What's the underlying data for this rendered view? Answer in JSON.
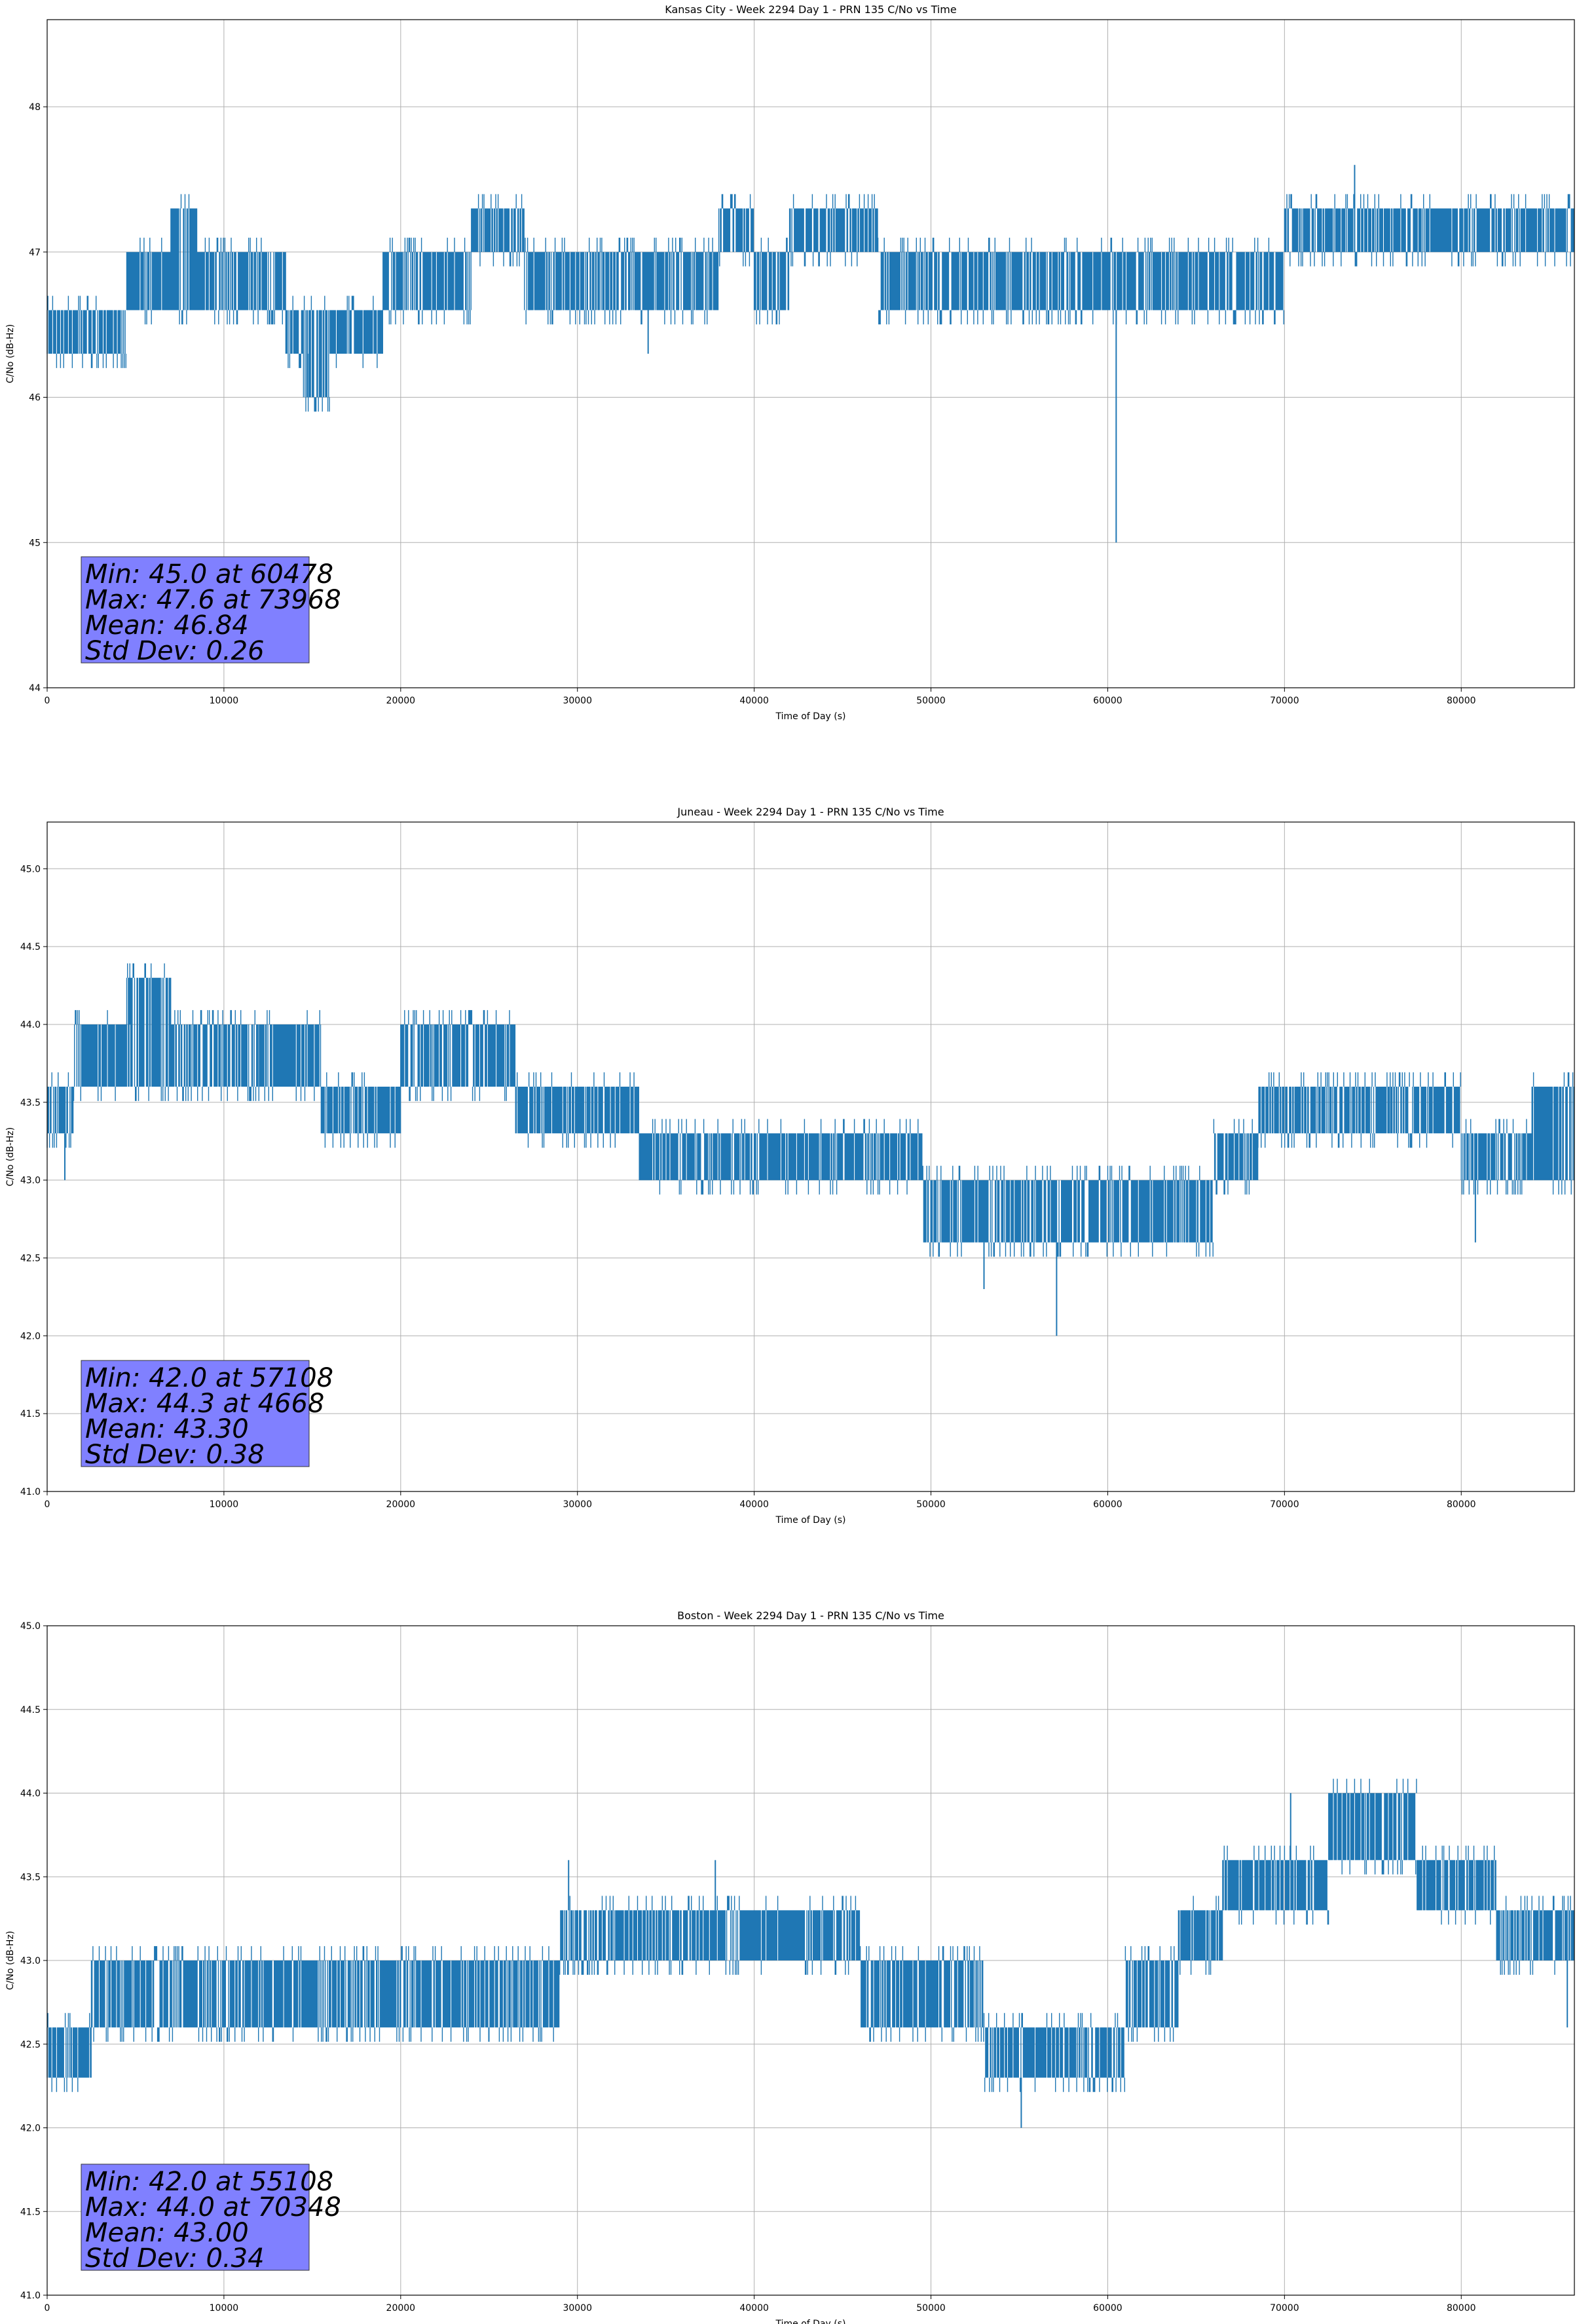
{
  "chart_data": [
    {
      "type": "line",
      "title": "Kansas City - Week 2294 Day 1 - PRN 135 C/No vs Time",
      "xlabel": "Time of Day (s)",
      "ylabel": "C/No (dB-Hz)",
      "xlim": [
        0,
        86400
      ],
      "ylim": [
        44.0,
        48.6
      ],
      "xticks": [
        0,
        10000,
        20000,
        30000,
        40000,
        50000,
        60000,
        70000,
        80000
      ],
      "yticks": [
        44,
        45,
        46,
        47,
        48
      ],
      "ytick_decimals": 0,
      "grid": true,
      "series_color": "#1f77b4",
      "stats": [
        "Min: 45.0 at 60478",
        "Max: 47.6 at 73968",
        "Mean: 46.84",
        "Std Dev: 0.26"
      ],
      "stats_box_color": "#8080ff",
      "segments": [
        [
          0,
          2500,
          46.3,
          46.6
        ],
        [
          2500,
          4500,
          46.3,
          46.6
        ],
        [
          4500,
          5500,
          46.6,
          47.0
        ],
        [
          5500,
          7000,
          46.6,
          47.0
        ],
        [
          7000,
          8500,
          46.6,
          47.3
        ],
        [
          8500,
          11000,
          46.6,
          47.0
        ],
        [
          11000,
          13500,
          46.6,
          47.0
        ],
        [
          13500,
          14500,
          46.3,
          46.6
        ],
        [
          14500,
          16000,
          46.0,
          46.6
        ],
        [
          16000,
          19000,
          46.3,
          46.6
        ],
        [
          19000,
          24000,
          46.6,
          47.0
        ],
        [
          24000,
          27000,
          47.0,
          47.3
        ],
        [
          27000,
          30000,
          46.6,
          47.0
        ],
        [
          30000,
          34000,
          46.6,
          47.0
        ],
        [
          34000,
          38000,
          46.6,
          47.0
        ],
        [
          38000,
          40000,
          47.0,
          47.3
        ],
        [
          40000,
          42000,
          46.6,
          47.0
        ],
        [
          42000,
          47000,
          47.0,
          47.3
        ],
        [
          47000,
          49000,
          46.6,
          47.0
        ],
        [
          49000,
          54000,
          46.6,
          47.0
        ],
        [
          54000,
          60000,
          46.6,
          47.0
        ],
        [
          60000,
          61000,
          46.6,
          47.0
        ],
        [
          61000,
          66000,
          46.6,
          47.0
        ],
        [
          66000,
          70000,
          46.6,
          47.0
        ],
        [
          70000,
          74000,
          47.0,
          47.3
        ],
        [
          74000,
          78000,
          47.0,
          47.3
        ],
        [
          78000,
          82000,
          47.0,
          47.3
        ],
        [
          82000,
          86400,
          47.0,
          47.3
        ]
      ],
      "spikes": [
        [
          60478,
          45.0,
          46.6
        ],
        [
          73968,
          47.0,
          47.6
        ],
        [
          14800,
          46.0,
          46.3
        ],
        [
          34000,
          46.3,
          46.6
        ]
      ]
    },
    {
      "type": "line",
      "title": "Juneau - Week 2294 Day 1 - PRN 135 C/No vs Time",
      "xlabel": "Time of Day (s)",
      "ylabel": "C/No (dB-Hz)",
      "xlim": [
        0,
        86400
      ],
      "ylim": [
        41.0,
        45.3
      ],
      "xticks": [
        0,
        10000,
        20000,
        30000,
        40000,
        50000,
        60000,
        70000,
        80000
      ],
      "yticks": [
        41.0,
        41.5,
        42.0,
        42.5,
        43.0,
        43.5,
        44.0,
        44.5,
        45.0
      ],
      "ytick_decimals": 1,
      "grid": true,
      "series_color": "#1f77b4",
      "stats": [
        "Min: 42.0 at 57108",
        "Max: 44.3 at 4668",
        "Mean: 43.30",
        "Std Dev: 0.38"
      ],
      "stats_box_color": "#8080ff",
      "segments": [
        [
          0,
          1500,
          43.3,
          43.6
        ],
        [
          1500,
          4500,
          43.6,
          44.0
        ],
        [
          4500,
          7000,
          43.6,
          44.3
        ],
        [
          7000,
          12000,
          43.6,
          44.0
        ],
        [
          12000,
          15500,
          43.6,
          44.0
        ],
        [
          15500,
          20000,
          43.3,
          43.6
        ],
        [
          20000,
          23000,
          43.6,
          44.0
        ],
        [
          23000,
          26500,
          43.6,
          44.0
        ],
        [
          26500,
          30000,
          43.3,
          43.6
        ],
        [
          30000,
          33500,
          43.3,
          43.6
        ],
        [
          33500,
          38000,
          43.0,
          43.3
        ],
        [
          38000,
          42000,
          43.0,
          43.3
        ],
        [
          42000,
          45000,
          43.0,
          43.3
        ],
        [
          45000,
          47000,
          43.0,
          43.3
        ],
        [
          47000,
          49500,
          43.0,
          43.3
        ],
        [
          49500,
          54000,
          42.6,
          43.0
        ],
        [
          54000,
          58000,
          42.6,
          43.0
        ],
        [
          58000,
          62000,
          42.6,
          43.0
        ],
        [
          62000,
          66000,
          42.6,
          43.0
        ],
        [
          66000,
          68500,
          43.0,
          43.3
        ],
        [
          68500,
          71000,
          43.3,
          43.6
        ],
        [
          71000,
          76000,
          43.3,
          43.6
        ],
        [
          76000,
          80000,
          43.3,
          43.6
        ],
        [
          80000,
          84000,
          43.0,
          43.3
        ],
        [
          84000,
          86400,
          43.0,
          43.6
        ]
      ],
      "spikes": [
        [
          57108,
          42.0,
          42.6
        ],
        [
          4668,
          44.0,
          44.3
        ],
        [
          53000,
          42.3,
          42.6
        ],
        [
          80800,
          42.6,
          43.0
        ],
        [
          1000,
          43.0,
          43.3
        ]
      ]
    },
    {
      "type": "line",
      "title": "Boston - Week 2294 Day 1 - PRN 135 C/No vs Time",
      "xlabel": "Time of Day (s)",
      "ylabel": "C/No (dB-Hz)",
      "xlim": [
        0,
        86400
      ],
      "ylim": [
        41.0,
        45.0
      ],
      "xticks": [
        0,
        10000,
        20000,
        30000,
        40000,
        50000,
        60000,
        70000,
        80000
      ],
      "yticks": [
        41.0,
        41.5,
        42.0,
        42.5,
        43.0,
        43.5,
        44.0,
        44.5,
        45.0
      ],
      "ytick_decimals": 1,
      "grid": true,
      "series_color": "#1f77b4",
      "stats": [
        "Min: 42.0 at 55108",
        "Max: 44.0 at 70348",
        "Mean: 43.00",
        "Std Dev: 0.34"
      ],
      "stats_box_color": "#8080ff",
      "segments": [
        [
          0,
          2500,
          42.3,
          42.6
        ],
        [
          2500,
          5000,
          42.6,
          43.0
        ],
        [
          5000,
          8000,
          42.6,
          43.0
        ],
        [
          8000,
          12000,
          42.6,
          43.0
        ],
        [
          12000,
          16000,
          42.6,
          43.0
        ],
        [
          16000,
          20000,
          42.6,
          43.0
        ],
        [
          20000,
          25000,
          42.6,
          43.0
        ],
        [
          25000,
          29000,
          42.6,
          43.0
        ],
        [
          29000,
          34000,
          43.0,
          43.3
        ],
        [
          34000,
          38000,
          43.0,
          43.3
        ],
        [
          38000,
          42000,
          43.0,
          43.3
        ],
        [
          42000,
          46000,
          43.0,
          43.3
        ],
        [
          46000,
          50000,
          42.6,
          43.0
        ],
        [
          50000,
          53000,
          42.6,
          43.0
        ],
        [
          53000,
          57000,
          42.3,
          42.6
        ],
        [
          57000,
          61000,
          42.3,
          42.6
        ],
        [
          61000,
          64000,
          42.6,
          43.0
        ],
        [
          64000,
          66500,
          43.0,
          43.3
        ],
        [
          66500,
          70000,
          43.3,
          43.6
        ],
        [
          70000,
          72500,
          43.3,
          43.6
        ],
        [
          72500,
          76000,
          43.6,
          44.0
        ],
        [
          76000,
          77500,
          43.6,
          44.0
        ],
        [
          77500,
          80000,
          43.3,
          43.6
        ],
        [
          80000,
          82000,
          43.3,
          43.6
        ],
        [
          82000,
          86400,
          43.0,
          43.3
        ]
      ],
      "spikes": [
        [
          55108,
          42.0,
          42.3
        ],
        [
          70348,
          43.6,
          44.0
        ],
        [
          29500,
          43.3,
          43.6
        ],
        [
          37800,
          43.3,
          43.6
        ],
        [
          86000,
          42.6,
          43.0
        ]
      ]
    }
  ]
}
